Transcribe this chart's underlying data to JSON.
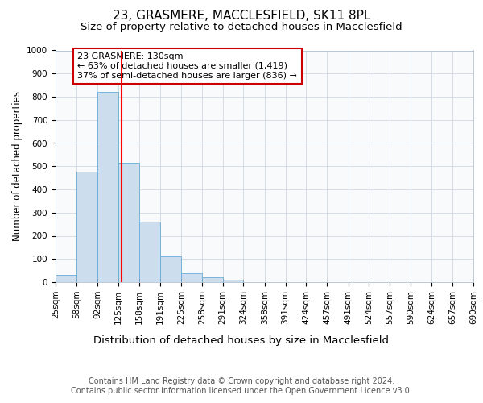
{
  "title1": "23, GRASMERE, MACCLESFIELD, SK11 8PL",
  "title2": "Size of property relative to detached houses in Macclesfield",
  "xlabel": "Distribution of detached houses by size in Macclesfield",
  "ylabel": "Number of detached properties",
  "bin_edges": [
    25,
    58,
    92,
    125,
    158,
    191,
    225,
    258,
    291,
    324,
    358,
    391,
    424,
    457,
    491,
    524,
    557,
    590,
    624,
    657,
    690
  ],
  "bar_heights": [
    30,
    475,
    820,
    515,
    260,
    110,
    40,
    20,
    10,
    0,
    0,
    0,
    0,
    0,
    0,
    0,
    0,
    0,
    0,
    0
  ],
  "bar_color": "#ccdded",
  "bar_edge_color": "#6aaad4",
  "red_line_x": 130,
  "ylim": [
    0,
    1000
  ],
  "annotation_text": "23 GRASMERE: 130sqm\n← 63% of detached houses are smaller (1,419)\n37% of semi-detached houses are larger (836) →",
  "annotation_box_color": "#ffffff",
  "annotation_box_edge": "#cc0000",
  "footnote": "Contains HM Land Registry data © Crown copyright and database right 2024.\nContains public sector information licensed under the Open Government Licence v3.0.",
  "title1_fontsize": 11,
  "title2_fontsize": 9.5,
  "xlabel_fontsize": 9.5,
  "ylabel_fontsize": 8.5,
  "tick_fontsize": 7.5,
  "annotation_fontsize": 8,
  "footnote_fontsize": 7
}
